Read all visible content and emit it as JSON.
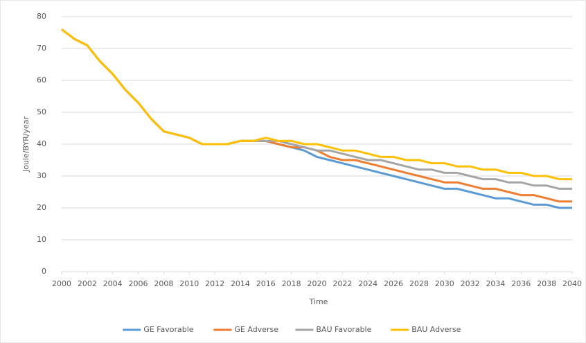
{
  "chart_data": {
    "type": "line",
    "x_label": "Time",
    "y_label": "Joule/BYR/year",
    "x": [
      2000,
      2001,
      2002,
      2003,
      2004,
      2005,
      2006,
      2007,
      2008,
      2009,
      2010,
      2011,
      2012,
      2013,
      2014,
      2015,
      2016,
      2017,
      2018,
      2019,
      2020,
      2021,
      2022,
      2023,
      2024,
      2025,
      2026,
      2027,
      2028,
      2029,
      2030,
      2031,
      2032,
      2033,
      2034,
      2035,
      2036,
      2037,
      2038,
      2039,
      2040
    ],
    "series": [
      {
        "name": "GE Favorable",
        "color": "#5b9bd5",
        "values": [
          76,
          73,
          71,
          66,
          62,
          57,
          53,
          48,
          44,
          43,
          42,
          40,
          40,
          40,
          41,
          41,
          41,
          40,
          39,
          38,
          36,
          35,
          34,
          33,
          32,
          31,
          30,
          29,
          28,
          27,
          26,
          26,
          25,
          24,
          23,
          23,
          22,
          21,
          21,
          20,
          20
        ]
      },
      {
        "name": "GE Adverse",
        "color": "#ed7d31",
        "values": [
          76,
          73,
          71,
          66,
          62,
          57,
          53,
          48,
          44,
          43,
          42,
          40,
          40,
          40,
          41,
          41,
          41,
          40,
          39,
          39,
          38,
          36,
          35,
          35,
          34,
          33,
          32,
          31,
          30,
          29,
          28,
          28,
          27,
          26,
          26,
          25,
          24,
          24,
          23,
          22,
          22
        ]
      },
      {
        "name": "BAU Favorable",
        "color": "#a5a5a5",
        "values": [
          76,
          73,
          71,
          66,
          62,
          57,
          53,
          48,
          44,
          43,
          42,
          40,
          40,
          40,
          41,
          41,
          41,
          41,
          40,
          39,
          38,
          38,
          37,
          36,
          35,
          35,
          34,
          33,
          32,
          32,
          31,
          31,
          30,
          29,
          29,
          28,
          28,
          27,
          27,
          26,
          26
        ]
      },
      {
        "name": "BAU Adverse",
        "color": "#ffc000",
        "values": [
          76,
          73,
          71,
          66,
          62,
          57,
          53,
          48,
          44,
          43,
          42,
          40,
          40,
          40,
          41,
          41,
          42,
          41,
          41,
          40,
          40,
          39,
          38,
          38,
          37,
          36,
          36,
          35,
          35,
          34,
          34,
          33,
          33,
          32,
          32,
          31,
          31,
          30,
          30,
          29,
          29
        ]
      }
    ],
    "xlim": [
      2000,
      2040
    ],
    "xticks": [
      2000,
      2002,
      2004,
      2006,
      2008,
      2010,
      2012,
      2014,
      2016,
      2018,
      2020,
      2022,
      2024,
      2026,
      2028,
      2030,
      2032,
      2034,
      2036,
      2038,
      2040
    ],
    "ylim": [
      0,
      80
    ],
    "yticks": [
      0,
      10,
      20,
      30,
      40,
      50,
      60,
      70,
      80
    ],
    "grid": true,
    "legend": "bottom"
  }
}
